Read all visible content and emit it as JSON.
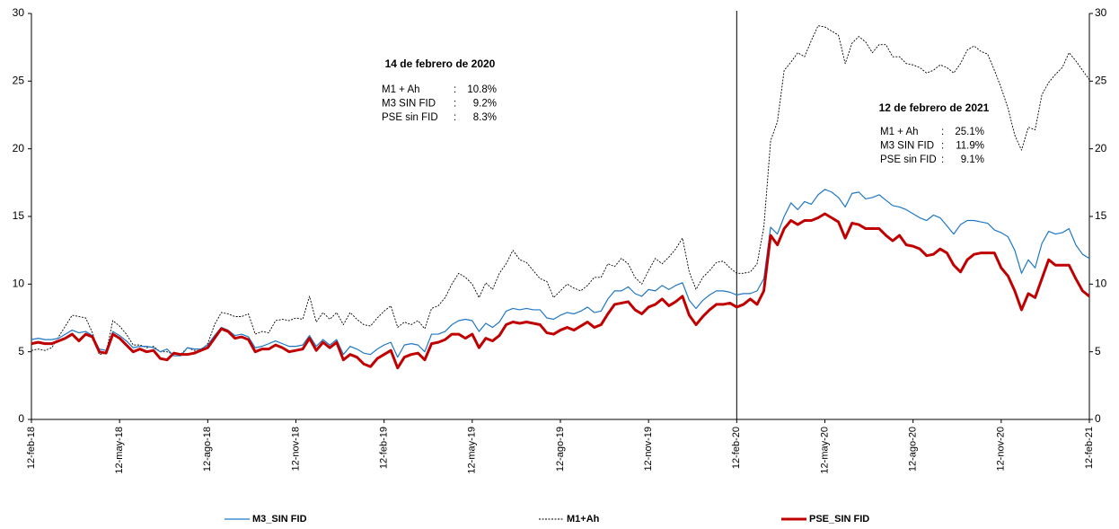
{
  "chart_data": {
    "type": "line",
    "categories": [
      "12-feb-18",
      null,
      null,
      null,
      null,
      null,
      null,
      null,
      null,
      null,
      null,
      null,
      null,
      "12-may-18",
      null,
      null,
      null,
      null,
      null,
      null,
      null,
      null,
      null,
      null,
      null,
      null,
      "12-ago-18",
      null,
      null,
      null,
      null,
      null,
      null,
      null,
      null,
      null,
      null,
      null,
      null,
      "12-nov-18",
      null,
      null,
      null,
      null,
      null,
      null,
      null,
      null,
      null,
      null,
      null,
      null,
      "12-feb-19",
      null,
      null,
      null,
      null,
      null,
      null,
      null,
      null,
      null,
      null,
      null,
      null,
      "12-may-19",
      null,
      null,
      null,
      null,
      null,
      null,
      null,
      null,
      null,
      null,
      null,
      null,
      "12-ago-19",
      null,
      null,
      null,
      null,
      null,
      null,
      null,
      null,
      null,
      null,
      null,
      null,
      "12-nov-19",
      null,
      null,
      null,
      null,
      null,
      null,
      null,
      null,
      null,
      null,
      null,
      null,
      "12-feb-20",
      null,
      null,
      null,
      null,
      null,
      null,
      null,
      null,
      null,
      null,
      null,
      null,
      "12-may-20",
      null,
      null,
      null,
      null,
      null,
      null,
      null,
      null,
      null,
      null,
      null,
      null,
      "12-ago-20",
      null,
      null,
      null,
      null,
      null,
      null,
      null,
      null,
      null,
      null,
      null,
      null,
      "12-nov-20",
      null,
      null,
      null,
      null,
      null,
      null,
      null,
      null,
      null,
      null,
      null,
      null,
      "12-feb-21"
    ],
    "series": [
      {
        "name": "M3_SIN FID",
        "color": "#1f77c4",
        "width": 1.2,
        "dashed": false,
        "values": [
          5.9,
          6.0,
          5.9,
          5.9,
          6.0,
          6.3,
          6.6,
          6.4,
          6.5,
          6.2,
          5.2,
          5.1,
          6.5,
          6.2,
          5.8,
          5.3,
          5.4,
          5.4,
          5.3,
          5.0,
          5.2,
          4.7,
          4.7,
          5.3,
          5.2,
          5.2,
          5.5,
          6.2,
          6.8,
          6.6,
          6.2,
          6.3,
          6.1,
          5.3,
          5.4,
          5.6,
          5.8,
          5.6,
          5.4,
          5.4,
          5.5,
          6.2,
          5.4,
          5.9,
          5.5,
          5.9,
          4.8,
          5.4,
          5.2,
          4.9,
          4.8,
          5.2,
          5.5,
          5.7,
          4.6,
          5.5,
          5.6,
          5.5,
          5.0,
          6.3,
          6.3,
          6.5,
          7.0,
          7.3,
          7.4,
          7.3,
          6.5,
          7.1,
          6.8,
          7.2,
          8.0,
          8.2,
          8.1,
          8.2,
          8.1,
          8.1,
          7.5,
          7.4,
          7.7,
          7.9,
          7.8,
          8.0,
          8.3,
          7.9,
          8.0,
          8.9,
          9.5,
          9.5,
          9.8,
          9.3,
          9.1,
          9.6,
          9.5,
          9.9,
          9.6,
          9.9,
          10.1,
          8.8,
          8.2,
          8.8,
          9.2,
          9.5,
          9.5,
          9.4,
          9.2,
          9.3,
          9.3,
          9.5,
          10.4,
          14.2,
          13.7,
          15.0,
          16.0,
          15.5,
          16.1,
          15.9,
          16.6,
          17.0,
          16.8,
          16.4,
          15.7,
          16.7,
          16.8,
          16.3,
          16.4,
          16.6,
          16.2,
          15.8,
          15.7,
          15.5,
          15.2,
          14.9,
          14.7,
          15.1,
          14.9,
          14.3,
          13.7,
          14.4,
          14.7,
          14.7,
          14.6,
          14.5,
          14.0,
          13.8,
          13.5,
          12.5,
          10.8,
          11.8,
          11.2,
          13.0,
          13.9,
          13.7,
          13.8,
          14.1,
          12.9,
          12.2,
          11.9
        ]
      },
      {
        "name": "M1+Ah",
        "color": "#000000",
        "width": 0.9,
        "dashed": true,
        "values": [
          5.1,
          5.2,
          5.1,
          5.3,
          6.1,
          6.9,
          7.7,
          7.6,
          7.5,
          6.4,
          4.8,
          4.9,
          7.3,
          6.9,
          6.3,
          5.5,
          5.5,
          5.3,
          5.4,
          5.0,
          5.0,
          4.8,
          4.8,
          5.3,
          5.1,
          5.1,
          5.6,
          7.0,
          7.9,
          7.8,
          7.6,
          7.6,
          7.8,
          6.3,
          6.5,
          6.4,
          7.3,
          7.4,
          7.3,
          7.5,
          7.4,
          9.1,
          7.2,
          7.9,
          7.4,
          7.9,
          7.0,
          7.9,
          7.4,
          7.0,
          6.9,
          7.5,
          8.0,
          8.4,
          6.8,
          7.2,
          7.0,
          7.3,
          6.7,
          8.2,
          8.4,
          9.0,
          10.0,
          10.8,
          10.5,
          10.0,
          9.0,
          10.1,
          9.6,
          10.8,
          11.5,
          12.5,
          11.8,
          11.6,
          11.0,
          10.4,
          10.2,
          9.0,
          9.5,
          10.0,
          9.7,
          9.5,
          9.9,
          10.5,
          10.5,
          11.5,
          11.3,
          11.9,
          11.5,
          10.5,
          10.0,
          11.0,
          11.9,
          11.5,
          12.0,
          12.6,
          13.4,
          10.9,
          9.6,
          10.5,
          11.0,
          11.6,
          11.7,
          11.2,
          10.8,
          10.8,
          10.9,
          11.5,
          14.2,
          20.6,
          22.0,
          25.8,
          26.4,
          27.1,
          26.8,
          28.0,
          29.1,
          29.0,
          28.7,
          28.4,
          26.3,
          27.8,
          28.3,
          27.9,
          27.1,
          27.7,
          27.7,
          26.8,
          26.8,
          26.3,
          26.2,
          26.0,
          25.6,
          25.8,
          26.2,
          26.0,
          25.6,
          26.3,
          27.3,
          27.6,
          27.2,
          27.0,
          25.8,
          24.5,
          23.0,
          21.0,
          19.9,
          21.6,
          21.4,
          24.0,
          24.9,
          25.5,
          26.0,
          27.1,
          26.5,
          25.8,
          25.1
        ]
      },
      {
        "name": "PSE_SIN FID",
        "color": "#c00000",
        "width": 3,
        "dashed": false,
        "values": [
          5.6,
          5.7,
          5.6,
          5.6,
          5.8,
          6.0,
          6.3,
          5.8,
          6.3,
          6.1,
          5.0,
          4.9,
          6.3,
          6.0,
          5.5,
          5.0,
          5.2,
          5.0,
          5.1,
          4.5,
          4.4,
          4.9,
          4.8,
          4.8,
          4.9,
          5.1,
          5.3,
          6.0,
          6.7,
          6.5,
          6.0,
          6.1,
          5.9,
          5.0,
          5.2,
          5.2,
          5.5,
          5.3,
          5.0,
          5.1,
          5.2,
          6.0,
          5.1,
          5.7,
          5.3,
          5.7,
          4.4,
          4.8,
          4.6,
          4.1,
          3.9,
          4.5,
          4.8,
          5.1,
          3.8,
          4.6,
          4.8,
          4.9,
          4.4,
          5.6,
          5.7,
          5.9,
          6.3,
          6.3,
          6.0,
          6.3,
          5.3,
          6.0,
          5.8,
          6.2,
          7.0,
          7.2,
          7.1,
          7.2,
          7.1,
          7.0,
          6.4,
          6.3,
          6.6,
          6.8,
          6.6,
          6.9,
          7.2,
          6.8,
          7.0,
          7.8,
          8.5,
          8.6,
          8.7,
          8.1,
          7.8,
          8.3,
          8.5,
          8.9,
          8.4,
          8.7,
          9.1,
          7.7,
          7.0,
          7.6,
          8.1,
          8.5,
          8.5,
          8.6,
          8.3,
          8.5,
          8.9,
          8.5,
          9.5,
          13.6,
          12.9,
          14.1,
          14.7,
          14.4,
          14.7,
          14.7,
          14.9,
          15.2,
          14.9,
          14.6,
          13.4,
          14.5,
          14.4,
          14.1,
          14.1,
          14.1,
          13.6,
          13.2,
          13.6,
          12.9,
          12.8,
          12.6,
          12.1,
          12.2,
          12.6,
          12.3,
          11.4,
          10.9,
          11.8,
          12.2,
          12.3,
          12.3,
          12.3,
          11.2,
          10.6,
          9.5,
          8.1,
          9.3,
          9.0,
          10.4,
          11.8,
          11.4,
          11.4,
          11.4,
          10.4,
          9.5,
          9.1
        ]
      }
    ],
    "ylim": [
      0,
      30
    ],
    "yticks": [
      0,
      5,
      10,
      15,
      20,
      25,
      30
    ],
    "y2lim": [
      0,
      30
    ],
    "y2ticks": [
      0,
      5,
      10,
      15,
      20,
      25,
      30
    ],
    "vline": "12-feb-20",
    "legend": "bottom",
    "annotations": [
      {
        "title": "14 de febrero de 2020",
        "rows": [
          {
            "label": "M1 + Ah",
            "sep": ":",
            "value": "10.8%"
          },
          {
            "label": "M3 SIN FID",
            "sep": ":",
            "value": "9.2%"
          },
          {
            "label": "PSE sin FID",
            "sep": ":",
            "value": "8.3%"
          }
        ]
      },
      {
        "title": "12 de febrero de 2021",
        "rows": [
          {
            "label": "M1 + Ah",
            "sep": ":",
            "value": "25.1%"
          },
          {
            "label": "M3 SIN FID",
            "sep": ":",
            "value": "11.9%"
          },
          {
            "label": "PSE sin FID",
            "sep": ":",
            "value": "9.1%"
          }
        ]
      }
    ]
  }
}
